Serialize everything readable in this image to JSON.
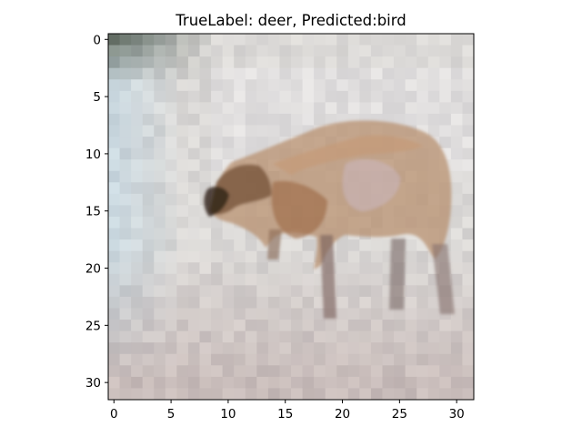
{
  "chart_data": {
    "type": "heatmap",
    "title": "TrueLabel: deer, Predicted:bird",
    "xlabel": "",
    "ylabel": "",
    "image_size": [
      32,
      32
    ],
    "xlim": [
      -0.5,
      31.5
    ],
    "ylim": [
      31.5,
      -0.5
    ],
    "x_ticks": [
      0,
      5,
      10,
      15,
      20,
      25,
      30
    ],
    "x_tick_labels": [
      "0",
      "5",
      "10",
      "15",
      "20",
      "25",
      "30"
    ],
    "y_ticks": [
      0,
      5,
      10,
      15,
      20,
      25,
      30
    ],
    "y_tick_labels": [
      "0",
      "5",
      "10",
      "15",
      "20",
      "25",
      "30"
    ],
    "grid": false,
    "true_label": "deer",
    "predicted_label": "bird"
  }
}
